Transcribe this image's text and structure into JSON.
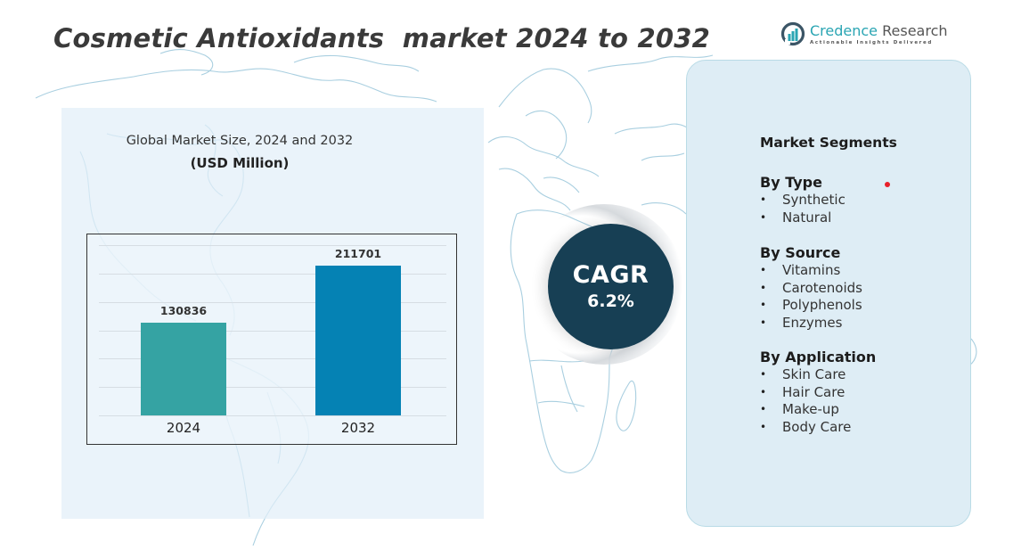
{
  "header": {
    "title": "Cosmetic Antioxidants  market 2024 to 2032"
  },
  "logo": {
    "icon": "bar-chart-circle-icon",
    "name_accent": "Credence",
    "name_rest": " Research",
    "tagline": "Actionable Insights Delivered",
    "accent_color": "#2aa5b3"
  },
  "chart_panel": {
    "title": "Global Market Size, 2024 and 2032",
    "unit": "(USD Million)"
  },
  "chart_data": {
    "type": "bar",
    "title": "Global Market Size, 2024 and 2032",
    "subtitle": "(USD Million)",
    "categories": [
      "2024",
      "2032"
    ],
    "values": [
      130836,
      211701
    ],
    "value_labels": [
      "130836",
      "211701"
    ],
    "colors": [
      "#35a3a3",
      "#0582b4"
    ],
    "xlabel": "",
    "ylabel": "USD Million",
    "ylim": [
      0,
      240000
    ],
    "grid": true,
    "legend": false
  },
  "cagr": {
    "label": "CAGR",
    "value": "6.2%",
    "color": "#173f54"
  },
  "segments": {
    "title": "Market Segments",
    "groups": [
      {
        "title": "By Type",
        "items": [
          "Synthetic",
          "Natural"
        ]
      },
      {
        "title": "By Source",
        "items": [
          "Vitamins",
          "Carotenoids",
          "Polyphenols",
          "Enzymes"
        ]
      },
      {
        "title": "By Application",
        "items": [
          "Skin Care",
          "Hair Care",
          "Make-up",
          "Body Care"
        ]
      }
    ],
    "bullet": "•"
  }
}
